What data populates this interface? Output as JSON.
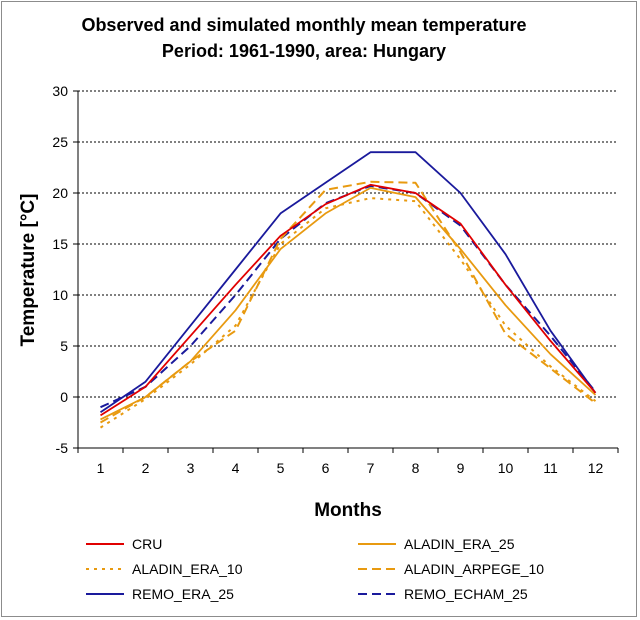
{
  "chart_data": {
    "type": "line",
    "title_lines": [
      "Observed and simulated monthly mean temperature",
      "Period: 1961-1990, area: Hungary"
    ],
    "xlabel": "Months",
    "ylabel": "Temperature [°C]",
    "x": [
      1,
      2,
      3,
      4,
      5,
      6,
      7,
      8,
      9,
      10,
      11,
      12
    ],
    "x_tick_labels": [
      "1",
      "2",
      "3",
      "4",
      "5",
      "6",
      "7",
      "8",
      "9",
      "10",
      "11",
      "12"
    ],
    "ylim": [
      -5,
      30
    ],
    "y_ticks": [
      -5,
      0,
      5,
      10,
      15,
      20,
      25,
      30
    ],
    "y_tick_labels": [
      "-5",
      "0",
      "5",
      "10",
      "15",
      "20",
      "25",
      "30"
    ],
    "grid": "horizontal dotted",
    "legend_position": "bottom",
    "series": [
      {
        "name": "CRU",
        "color": "#e00000",
        "dash": "solid",
        "values": [
          -1.8,
          1.0,
          6.0,
          11.0,
          15.8,
          18.9,
          20.8,
          20.0,
          17.0,
          11.0,
          5.5,
          0.4
        ]
      },
      {
        "name": "ALADIN_ERA_25",
        "color": "#e89a10",
        "dash": "solid",
        "values": [
          -2.2,
          0.0,
          3.5,
          8.5,
          14.5,
          18.0,
          20.5,
          19.6,
          14.5,
          9.0,
          4.2,
          0.2
        ]
      },
      {
        "name": "ALADIN_ERA_10",
        "color": "#e89a10",
        "dash": "dotted",
        "values": [
          -3.0,
          -0.2,
          3.2,
          7.0,
          15.0,
          18.5,
          19.5,
          19.2,
          13.5,
          7.0,
          3.0,
          -0.4
        ]
      },
      {
        "name": "ALADIN_ARPEGE_10",
        "color": "#e89a10",
        "dash": "dashed",
        "values": [
          -2.5,
          0.0,
          3.5,
          6.5,
          15.5,
          20.3,
          21.1,
          21.0,
          14.2,
          6.2,
          2.8,
          -0.6
        ]
      },
      {
        "name": "REMO_ERA_25",
        "color": "#1a1a9c",
        "dash": "solid",
        "values": [
          -1.5,
          1.5,
          7.0,
          12.5,
          18.0,
          21.0,
          24.0,
          24.0,
          20.0,
          14.0,
          6.5,
          0.4
        ]
      },
      {
        "name": "REMO_ECHAM_25",
        "color": "#1a1a9c",
        "dash": "dashed",
        "values": [
          -1.0,
          1.0,
          5.0,
          10.0,
          15.5,
          19.0,
          20.7,
          20.0,
          16.8,
          11.0,
          6.0,
          0.5
        ]
      }
    ]
  }
}
